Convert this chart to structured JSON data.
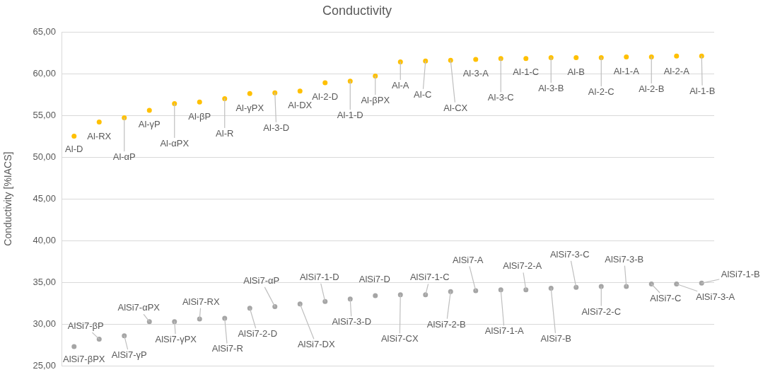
{
  "chart_data": {
    "type": "scatter",
    "title": "Conductivity",
    "ylabel": "Conductivity [%IACS]",
    "categories": [
      null,
      null,
      null,
      null,
      null,
      null,
      null,
      null,
      null,
      null,
      null,
      null,
      null,
      null,
      null,
      null,
      null,
      null,
      null,
      null,
      null,
      null,
      null,
      null,
      null,
      null
    ],
    "series": [
      {
        "color": "#ffc000",
        "values": [
          52.5,
          54.2,
          54.7,
          55.6,
          56.4,
          56.6,
          57.0,
          57.6,
          57.7,
          57.9,
          58.9,
          59.1,
          59.7,
          61.4,
          61.5,
          61.6,
          61.7,
          61.8,
          61.8,
          61.9,
          61.9,
          61.9,
          62.0,
          62.0,
          62.1,
          62.1
        ],
        "value_labels": [
          "Al-D",
          "Al-RX",
          "Al-αP",
          "Al-γP",
          "Al-αPX",
          "Al-βP",
          "Al-R",
          "Al-γPX",
          "Al-3-D",
          "Al-DX",
          "Al-2-D",
          "Al-1-D",
          "Al-βPX",
          "Al-A",
          "Al-C",
          "Al-CX",
          "Al-3-A",
          "Al-3-C",
          "Al-1-C",
          "Al-3-B",
          "Al-B",
          "Al-2-C",
          "Al-1-A",
          "Al-2-B",
          "Al-2-A",
          "Al-1-B"
        ]
      },
      {
        "color": "#a5a5a5",
        "values": [
          27.3,
          28.2,
          28.6,
          30.3,
          30.3,
          30.6,
          30.7,
          31.9,
          32.1,
          32.4,
          32.7,
          33.0,
          33.4,
          33.5,
          33.5,
          33.9,
          34.0,
          34.1,
          34.1,
          34.3,
          34.4,
          34.5,
          34.5,
          34.8,
          34.8,
          34.9
        ],
        "value_labels": [
          "AlSi7-βPX",
          "AlSi7-βP",
          "AlSi7-γP",
          "AlSi7-αPX",
          "AlSi7-γPX",
          "AlSi7-RX",
          "AlSi7-R",
          "AlSi7-2-D",
          "AlSi7-αP",
          "AlSi7-DX",
          "AlSi7-1-D",
          "AlSi7-3-D",
          "AlSi7-D",
          "AlSi7-CX",
          "AlSi7-1-C",
          "AlSi7-2-B",
          "AlSi7-A",
          "AlSi7-1-A",
          "AlSi7-2-A",
          "AlSi7-B",
          "AlSi7-3-C",
          "AlSi7-2-C",
          "AlSi7-3-B",
          "AlSi7-C",
          "AlSi7-3-A",
          "AlSi7-1-B"
        ]
      }
    ],
    "ylim": [
      25,
      65
    ],
    "yticks": [
      {
        "value": 25,
        "label": "25,00"
      },
      {
        "value": 30,
        "label": "30,00"
      },
      {
        "value": 35,
        "label": "35,00"
      },
      {
        "value": 40,
        "label": "40,00"
      },
      {
        "value": 45,
        "label": "45,00"
      },
      {
        "value": 50,
        "label": "50,00"
      },
      {
        "value": 55,
        "label": "55,00"
      },
      {
        "value": 60,
        "label": "60,00"
      },
      {
        "value": 65,
        "label": "65,00"
      }
    ],
    "grid": "y",
    "marker": "circle"
  }
}
